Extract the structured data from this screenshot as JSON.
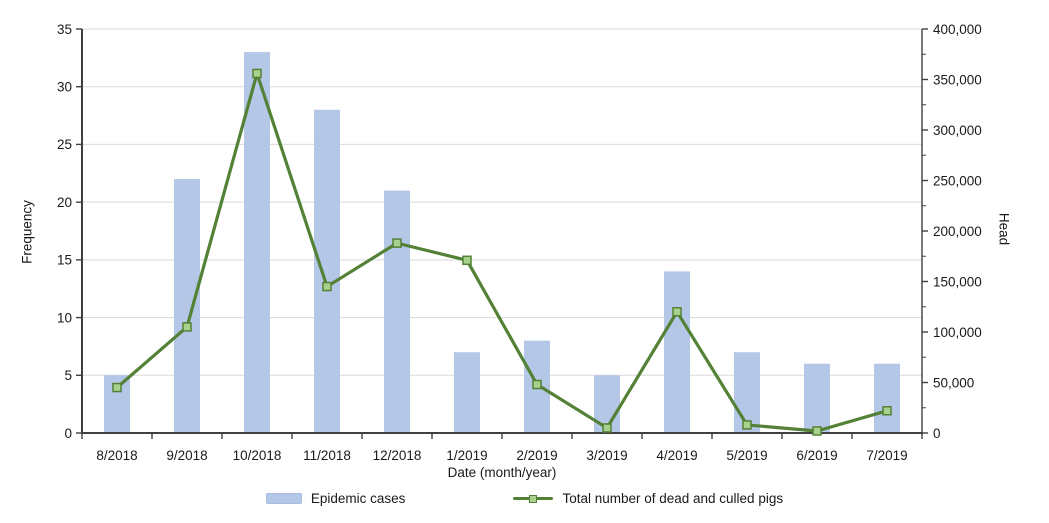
{
  "chart_data": {
    "type": "combo-bar-line",
    "title": "",
    "xlabel": "Date (month/year)",
    "ylabel_left": "Frequency",
    "ylabel_right": "Head",
    "categories": [
      "8/2018",
      "9/2018",
      "10/2018",
      "11/2018",
      "12/2018",
      "1/2019",
      "2/2019",
      "3/2019",
      "4/2019",
      "5/2019",
      "6/2019",
      "7/2019"
    ],
    "series": [
      {
        "name": "Epidemic cases",
        "chart_type": "bar",
        "axis": "left",
        "values": [
          5,
          22,
          33,
          28,
          21,
          7,
          8,
          5,
          14,
          7,
          6,
          6
        ]
      },
      {
        "name": "Total number of dead and culled pigs",
        "chart_type": "line",
        "axis": "right",
        "values": [
          45000,
          105000,
          356000,
          145000,
          188000,
          171000,
          48000,
          5000,
          120000,
          8000,
          2000,
          22000
        ]
      }
    ],
    "left_axis": {
      "title": "Frequency",
      "min": 0,
      "max": 35,
      "step": 5,
      "tick_labels": [
        "0",
        "5",
        "10",
        "15",
        "20",
        "25",
        "30",
        "35"
      ]
    },
    "right_axis": {
      "title": "Head",
      "min": 0,
      "max": 400000,
      "step": 50000,
      "minor_step": 25000,
      "tick_labels": [
        "0",
        "50,000",
        "100,000",
        "150,000",
        "200,000",
        "250,000",
        "300,000",
        "350,000",
        "400,000"
      ]
    },
    "grid": "horizontal gridlines at left-axis major ticks",
    "legend_position": "bottom-center",
    "colors": {
      "bar": "#b5c7e7",
      "bar_border": "#a6bbdf",
      "line": "#538135",
      "marker_fill": "#a9d18e",
      "grid": "#d9d9d9",
      "axis": "#404040",
      "text": "#1a1a1a"
    }
  }
}
